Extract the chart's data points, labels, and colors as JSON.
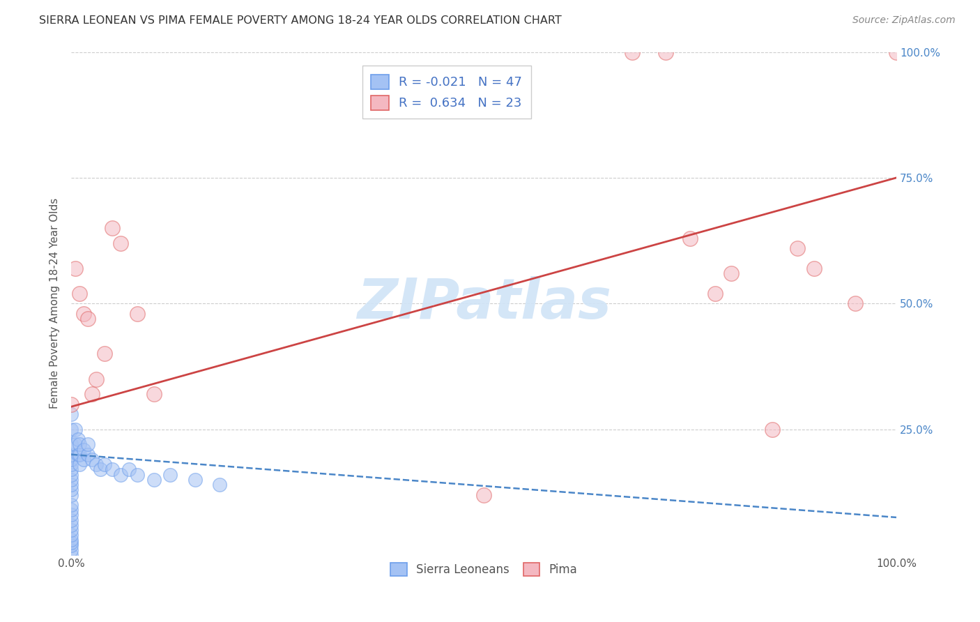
{
  "title": "SIERRA LEONEAN VS PIMA FEMALE POVERTY AMONG 18-24 YEAR OLDS CORRELATION CHART",
  "source": "Source: ZipAtlas.com",
  "ylabel": "Female Poverty Among 18-24 Year Olds",
  "xlim": [
    0,
    1.0
  ],
  "ylim": [
    0,
    1.0
  ],
  "legend_entry1_r": "R = -0.021",
  "legend_entry1_n": "N = 47",
  "legend_entry2_r": "R =  0.634",
  "legend_entry2_n": "N = 23",
  "sierra_color": "#a4c2f4",
  "pima_color": "#f4b8c1",
  "sierra_edge_color": "#6d9eeb",
  "pima_edge_color": "#e06666",
  "sierra_line_color": "#4a86c8",
  "pima_line_color": "#cc4444",
  "watermark_color": "#d0e4f7",
  "background_color": "#ffffff",
  "grid_color": "#cccccc",
  "sierra_x": [
    0.0,
    0.0,
    0.0,
    0.0,
    0.0,
    0.0,
    0.0,
    0.0,
    0.0,
    0.0,
    0.0,
    0.0,
    0.0,
    0.0,
    0.0,
    0.0,
    0.0,
    0.0,
    0.0,
    0.0,
    0.0,
    0.0,
    0.0,
    0.0,
    0.005,
    0.005,
    0.008,
    0.008,
    0.01,
    0.01,
    0.01,
    0.015,
    0.015,
    0.02,
    0.02,
    0.025,
    0.03,
    0.035,
    0.04,
    0.05,
    0.06,
    0.07,
    0.08,
    0.1,
    0.12,
    0.15,
    0.18
  ],
  "sierra_y": [
    0.0,
    0.01,
    0.02,
    0.025,
    0.03,
    0.04,
    0.05,
    0.06,
    0.07,
    0.08,
    0.09,
    0.1,
    0.12,
    0.13,
    0.14,
    0.15,
    0.16,
    0.17,
    0.18,
    0.19,
    0.2,
    0.22,
    0.25,
    0.28,
    0.22,
    0.25,
    0.2,
    0.23,
    0.18,
    0.2,
    0.22,
    0.19,
    0.21,
    0.2,
    0.22,
    0.19,
    0.18,
    0.17,
    0.18,
    0.17,
    0.16,
    0.17,
    0.16,
    0.15,
    0.16,
    0.15,
    0.14
  ],
  "pima_x": [
    0.0,
    0.005,
    0.01,
    0.015,
    0.02,
    0.025,
    0.03,
    0.04,
    0.05,
    0.06,
    0.08,
    0.1,
    0.5,
    0.68,
    0.72,
    0.75,
    0.78,
    0.8,
    0.85,
    0.88,
    0.9,
    0.95,
    1.0
  ],
  "pima_y": [
    0.3,
    0.57,
    0.52,
    0.48,
    0.47,
    0.32,
    0.35,
    0.4,
    0.65,
    0.62,
    0.48,
    0.32,
    0.12,
    1.0,
    1.0,
    0.63,
    0.52,
    0.56,
    0.25,
    0.61,
    0.57,
    0.5,
    1.0
  ],
  "sierra_line_x": [
    0.0,
    1.0
  ],
  "sierra_line_y": [
    0.2,
    0.075
  ],
  "pima_line_x": [
    0.0,
    1.0
  ],
  "pima_line_y": [
    0.295,
    0.75
  ]
}
